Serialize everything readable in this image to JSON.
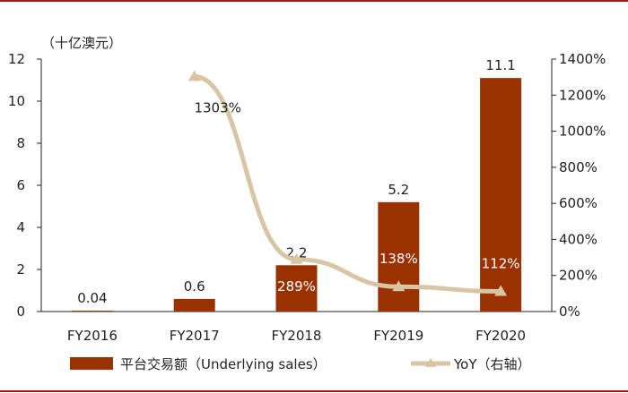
{
  "colors": {
    "bar": "#9b3000",
    "line": "#d9c4a4",
    "frame": "#a01c1c",
    "axis": "#222222"
  },
  "chart_data": {
    "type": "bar",
    "categories": [
      "FY2016",
      "FY2017",
      "FY2018",
      "FY2019",
      "FY2020"
    ],
    "left_axis": {
      "unit_label": "（十亿澳元）",
      "ylim": [
        0,
        12
      ],
      "ticks": [
        "0",
        "2",
        "4",
        "6",
        "8",
        "10",
        "12"
      ]
    },
    "right_axis": {
      "ylim": [
        0,
        14
      ],
      "ticks": [
        "0%",
        "200%",
        "400%",
        "600%",
        "800%",
        "1000%",
        "1200%",
        "1400%"
      ]
    },
    "series": [
      {
        "name": "平台交易额（Underlying sales）",
        "type": "bar",
        "axis": "left",
        "values": [
          0.04,
          0.6,
          2.2,
          5.2,
          11.1
        ],
        "labels": [
          "0.04",
          "0.6",
          "2.2",
          "5.2",
          "11.1"
        ]
      },
      {
        "name": "YoY（右轴）",
        "type": "line",
        "axis": "right",
        "values": [
          null,
          13.03,
          2.89,
          1.38,
          1.12
        ],
        "labels": [
          "",
          "1303%",
          "289%",
          "138%",
          "112%"
        ]
      }
    ],
    "grid": false,
    "legend_position": "bottom"
  }
}
